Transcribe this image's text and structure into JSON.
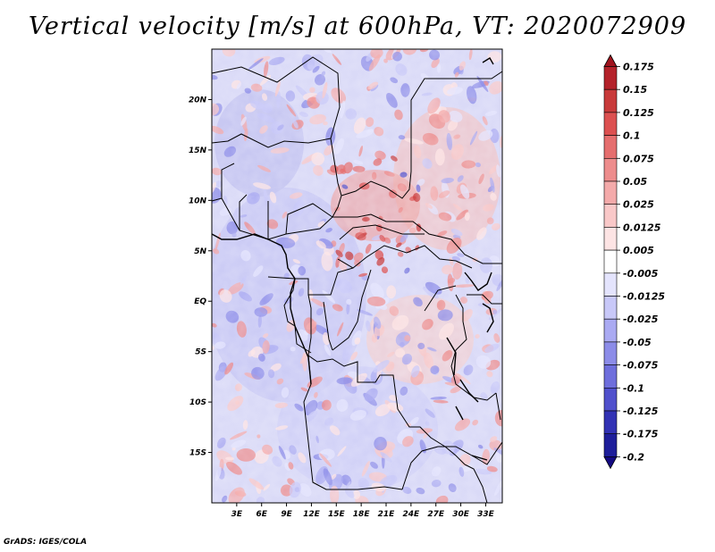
{
  "title": "Vertical velocity [m/s] at 600hPa, VT: 2020072909",
  "footer": "GrADS: IGES/COLA",
  "chart_data": {
    "type": "heatmap",
    "variable": "Vertical velocity",
    "units": "m/s",
    "level": "600hPa",
    "valid_time": "2020072909",
    "lat_ticks": [
      "20N",
      "15N",
      "10N",
      "5N",
      "EQ",
      "5S",
      "10S",
      "15S"
    ],
    "lat_values": [
      20,
      15,
      10,
      5,
      0,
      -5,
      -10,
      -15
    ],
    "lon_ticks": [
      "3E",
      "6E",
      "9E",
      "12E",
      "15E",
      "18E",
      "21E",
      "24E",
      "27E",
      "30E",
      "33E"
    ],
    "lon_values": [
      3,
      6,
      9,
      12,
      15,
      18,
      21,
      24,
      27,
      30,
      33
    ],
    "lat_range": [
      -20,
      25
    ],
    "lon_range": [
      0,
      35
    ],
    "colorbar": {
      "labels": [
        "0.175",
        "0.15",
        "0.125",
        "0.1",
        "0.075",
        "0.05",
        "0.025",
        "0.0125",
        "0.005",
        "-0.005",
        "-0.0125",
        "-0.025",
        "-0.05",
        "-0.075",
        "-0.1",
        "-0.125",
        "-0.175",
        "-0.2"
      ],
      "colors": [
        "#a0141e",
        "#b4222a",
        "#c83a3a",
        "#dc5050",
        "#e56e6e",
        "#ed8c8c",
        "#f4aaaa",
        "#f9c8c8",
        "#fde4e4",
        "#ffffff",
        "#e4e4fd",
        "#c8c8f8",
        "#aaaaf2",
        "#8c8ce8",
        "#6e6edc",
        "#5050cc",
        "#3232b4",
        "#1e1e9a",
        "#140a82"
      ]
    }
  }
}
